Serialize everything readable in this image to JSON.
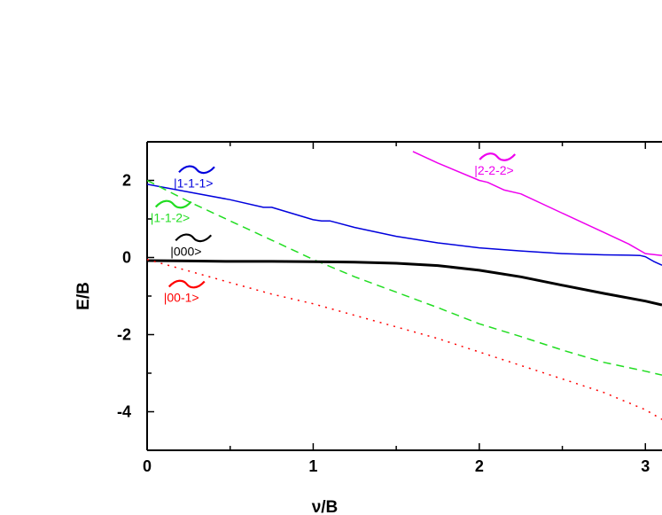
{
  "chart_data": {
    "type": "line",
    "title": "",
    "xlabel": "ν/B",
    "ylabel": "E/B",
    "xlim": [
      0,
      3.1
    ],
    "ylim": [
      -5,
      3
    ],
    "xticks": [
      {
        "value": 0,
        "label": "0"
      },
      {
        "value": 1,
        "label": "1"
      },
      {
        "value": 2,
        "label": "2"
      },
      {
        "value": 3,
        "label": "3"
      }
    ],
    "yticks": [
      {
        "value": -4,
        "label": "-4"
      },
      {
        "value": -2,
        "label": "-2"
      },
      {
        "value": 0,
        "label": "0"
      },
      {
        "value": 2,
        "label": "2"
      }
    ],
    "grid": false,
    "legend": "none",
    "series": [
      {
        "label": "|1-1-1>",
        "color": "#0000dd",
        "style": "solid",
        "width": "normal",
        "x": [
          0,
          0.25,
          0.5,
          0.7,
          0.75,
          1.0,
          1.05,
          1.1,
          1.25,
          1.5,
          1.75,
          2.0,
          2.25,
          2.5,
          2.75,
          2.9,
          2.97,
          3.0,
          3.05,
          3.1
        ],
        "y": [
          1.9,
          1.7,
          1.5,
          1.3,
          1.3,
          0.98,
          0.95,
          0.95,
          0.78,
          0.55,
          0.38,
          0.25,
          0.17,
          0.1,
          0.07,
          0.06,
          0.05,
          0.02,
          -0.1,
          -0.2
        ]
      },
      {
        "label": "|1-1-2>",
        "color": "#22dd22",
        "style": "dashed",
        "width": "normal",
        "x": [
          0,
          0.25,
          0.5,
          0.75,
          1.0,
          1.25,
          1.5,
          1.75,
          2.0,
          2.25,
          2.5,
          2.75,
          3.0,
          3.1
        ],
        "y": [
          2.0,
          1.45,
          0.95,
          0.45,
          -0.05,
          -0.5,
          -0.9,
          -1.3,
          -1.72,
          -2.05,
          -2.4,
          -2.72,
          -2.95,
          -3.05
        ]
      },
      {
        "label": "|000>",
        "color": "#000000",
        "style": "solid",
        "width": "thick",
        "x": [
          0,
          0.25,
          0.5,
          0.75,
          1.0,
          1.25,
          1.5,
          1.75,
          2.0,
          2.25,
          2.5,
          2.75,
          3.0,
          3.1
        ],
        "y": [
          -0.08,
          -0.09,
          -0.1,
          -0.1,
          -0.11,
          -0.12,
          -0.15,
          -0.21,
          -0.33,
          -0.5,
          -0.72,
          -0.93,
          -1.13,
          -1.23
        ]
      },
      {
        "label": "|00-1>",
        "color": "#ff0000",
        "style": "dotted",
        "width": "normal",
        "x": [
          0,
          0.25,
          0.5,
          0.75,
          1.0,
          1.25,
          1.5,
          1.75,
          2.0,
          2.25,
          2.5,
          2.75,
          3.0,
          3.1
        ],
        "y": [
          -0.05,
          -0.35,
          -0.65,
          -0.95,
          -1.2,
          -1.5,
          -1.8,
          -2.1,
          -2.45,
          -2.8,
          -3.15,
          -3.5,
          -3.95,
          -4.2
        ]
      },
      {
        "label": "|2-2-2>",
        "color": "#ee00ee",
        "style": "solid",
        "width": "normal",
        "x": [
          1.6,
          1.75,
          2.0,
          2.05,
          2.15,
          2.25,
          2.5,
          2.75,
          2.9,
          3.0,
          3.1
        ],
        "y": [
          2.75,
          2.45,
          2.0,
          1.95,
          1.75,
          1.65,
          1.15,
          0.65,
          0.35,
          0.1,
          0.05
        ]
      }
    ],
    "annotations": [
      {
        "text": "|1-1-1>",
        "color": "#0000dd",
        "x": 0.16,
        "y": 1.82
      },
      {
        "text": "|1-1-2>",
        "color": "#22dd22",
        "x": 0.02,
        "y": 0.92
      },
      {
        "text": "|000>",
        "color": "#000000",
        "x": 0.14,
        "y": 0.05
      },
      {
        "text": "|00-1>",
        "color": "#ff0000",
        "x": 0.1,
        "y": -1.15
      },
      {
        "text": "|2-2-2>",
        "color": "#ee00ee",
        "x": 1.97,
        "y": 2.15
      }
    ]
  }
}
